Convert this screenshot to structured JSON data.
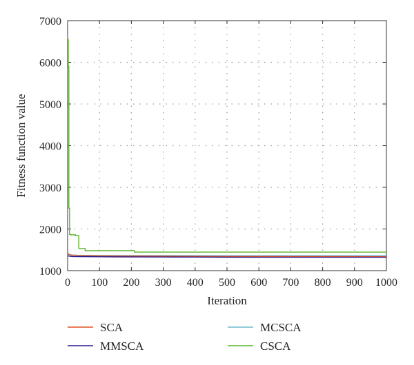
{
  "chart_data": {
    "type": "line",
    "title": "",
    "xlabel": "Iteration",
    "ylabel": "Fitness function value",
    "xlim": [
      0,
      1000
    ],
    "ylim": [
      1000,
      7000
    ],
    "xticks": [
      "0",
      "100",
      "200",
      "300",
      "400",
      "500",
      "600",
      "700",
      "800",
      "900",
      "1000"
    ],
    "yticks": [
      "1000",
      "2000",
      "3000",
      "4000",
      "5000",
      "6000",
      "7000"
    ],
    "grid": true,
    "legend_position": "bottom",
    "series": [
      {
        "name": "SCA",
        "color": "#e0501e",
        "x": [
          0,
          3,
          6,
          12,
          30,
          60,
          150,
          300,
          500,
          1000
        ],
        "y": [
          1430,
          1400,
          1380,
          1370,
          1360,
          1355,
          1350,
          1345,
          1340,
          1335
        ]
      },
      {
        "name": "MMSCA",
        "color": "#2b1f8f",
        "x": [
          0,
          3,
          8,
          15,
          30,
          60,
          150,
          300,
          400,
          500,
          1000
        ],
        "y": [
          1360,
          1350,
          1345,
          1340,
          1337,
          1335,
          1330,
          1328,
          1325,
          1322,
          1320
        ]
      },
      {
        "name": "MCSCA",
        "color": "#6fb7c9",
        "x": [
          0,
          3,
          10,
          30,
          100,
          300,
          1000
        ],
        "y": [
          1400,
          1390,
          1380,
          1370,
          1365,
          1362,
          1360
        ]
      },
      {
        "name": "CSCA",
        "color": "#5cb32b",
        "x": [
          0,
          2,
          2,
          4,
          4,
          6,
          6,
          10,
          10,
          25,
          25,
          35,
          35,
          55,
          55,
          210,
          210,
          1000
        ],
        "y": [
          6550,
          6550,
          5900,
          5900,
          2500,
          2500,
          1870,
          1870,
          1860,
          1860,
          1840,
          1840,
          1530,
          1530,
          1480,
          1480,
          1445,
          1445
        ]
      }
    ]
  }
}
